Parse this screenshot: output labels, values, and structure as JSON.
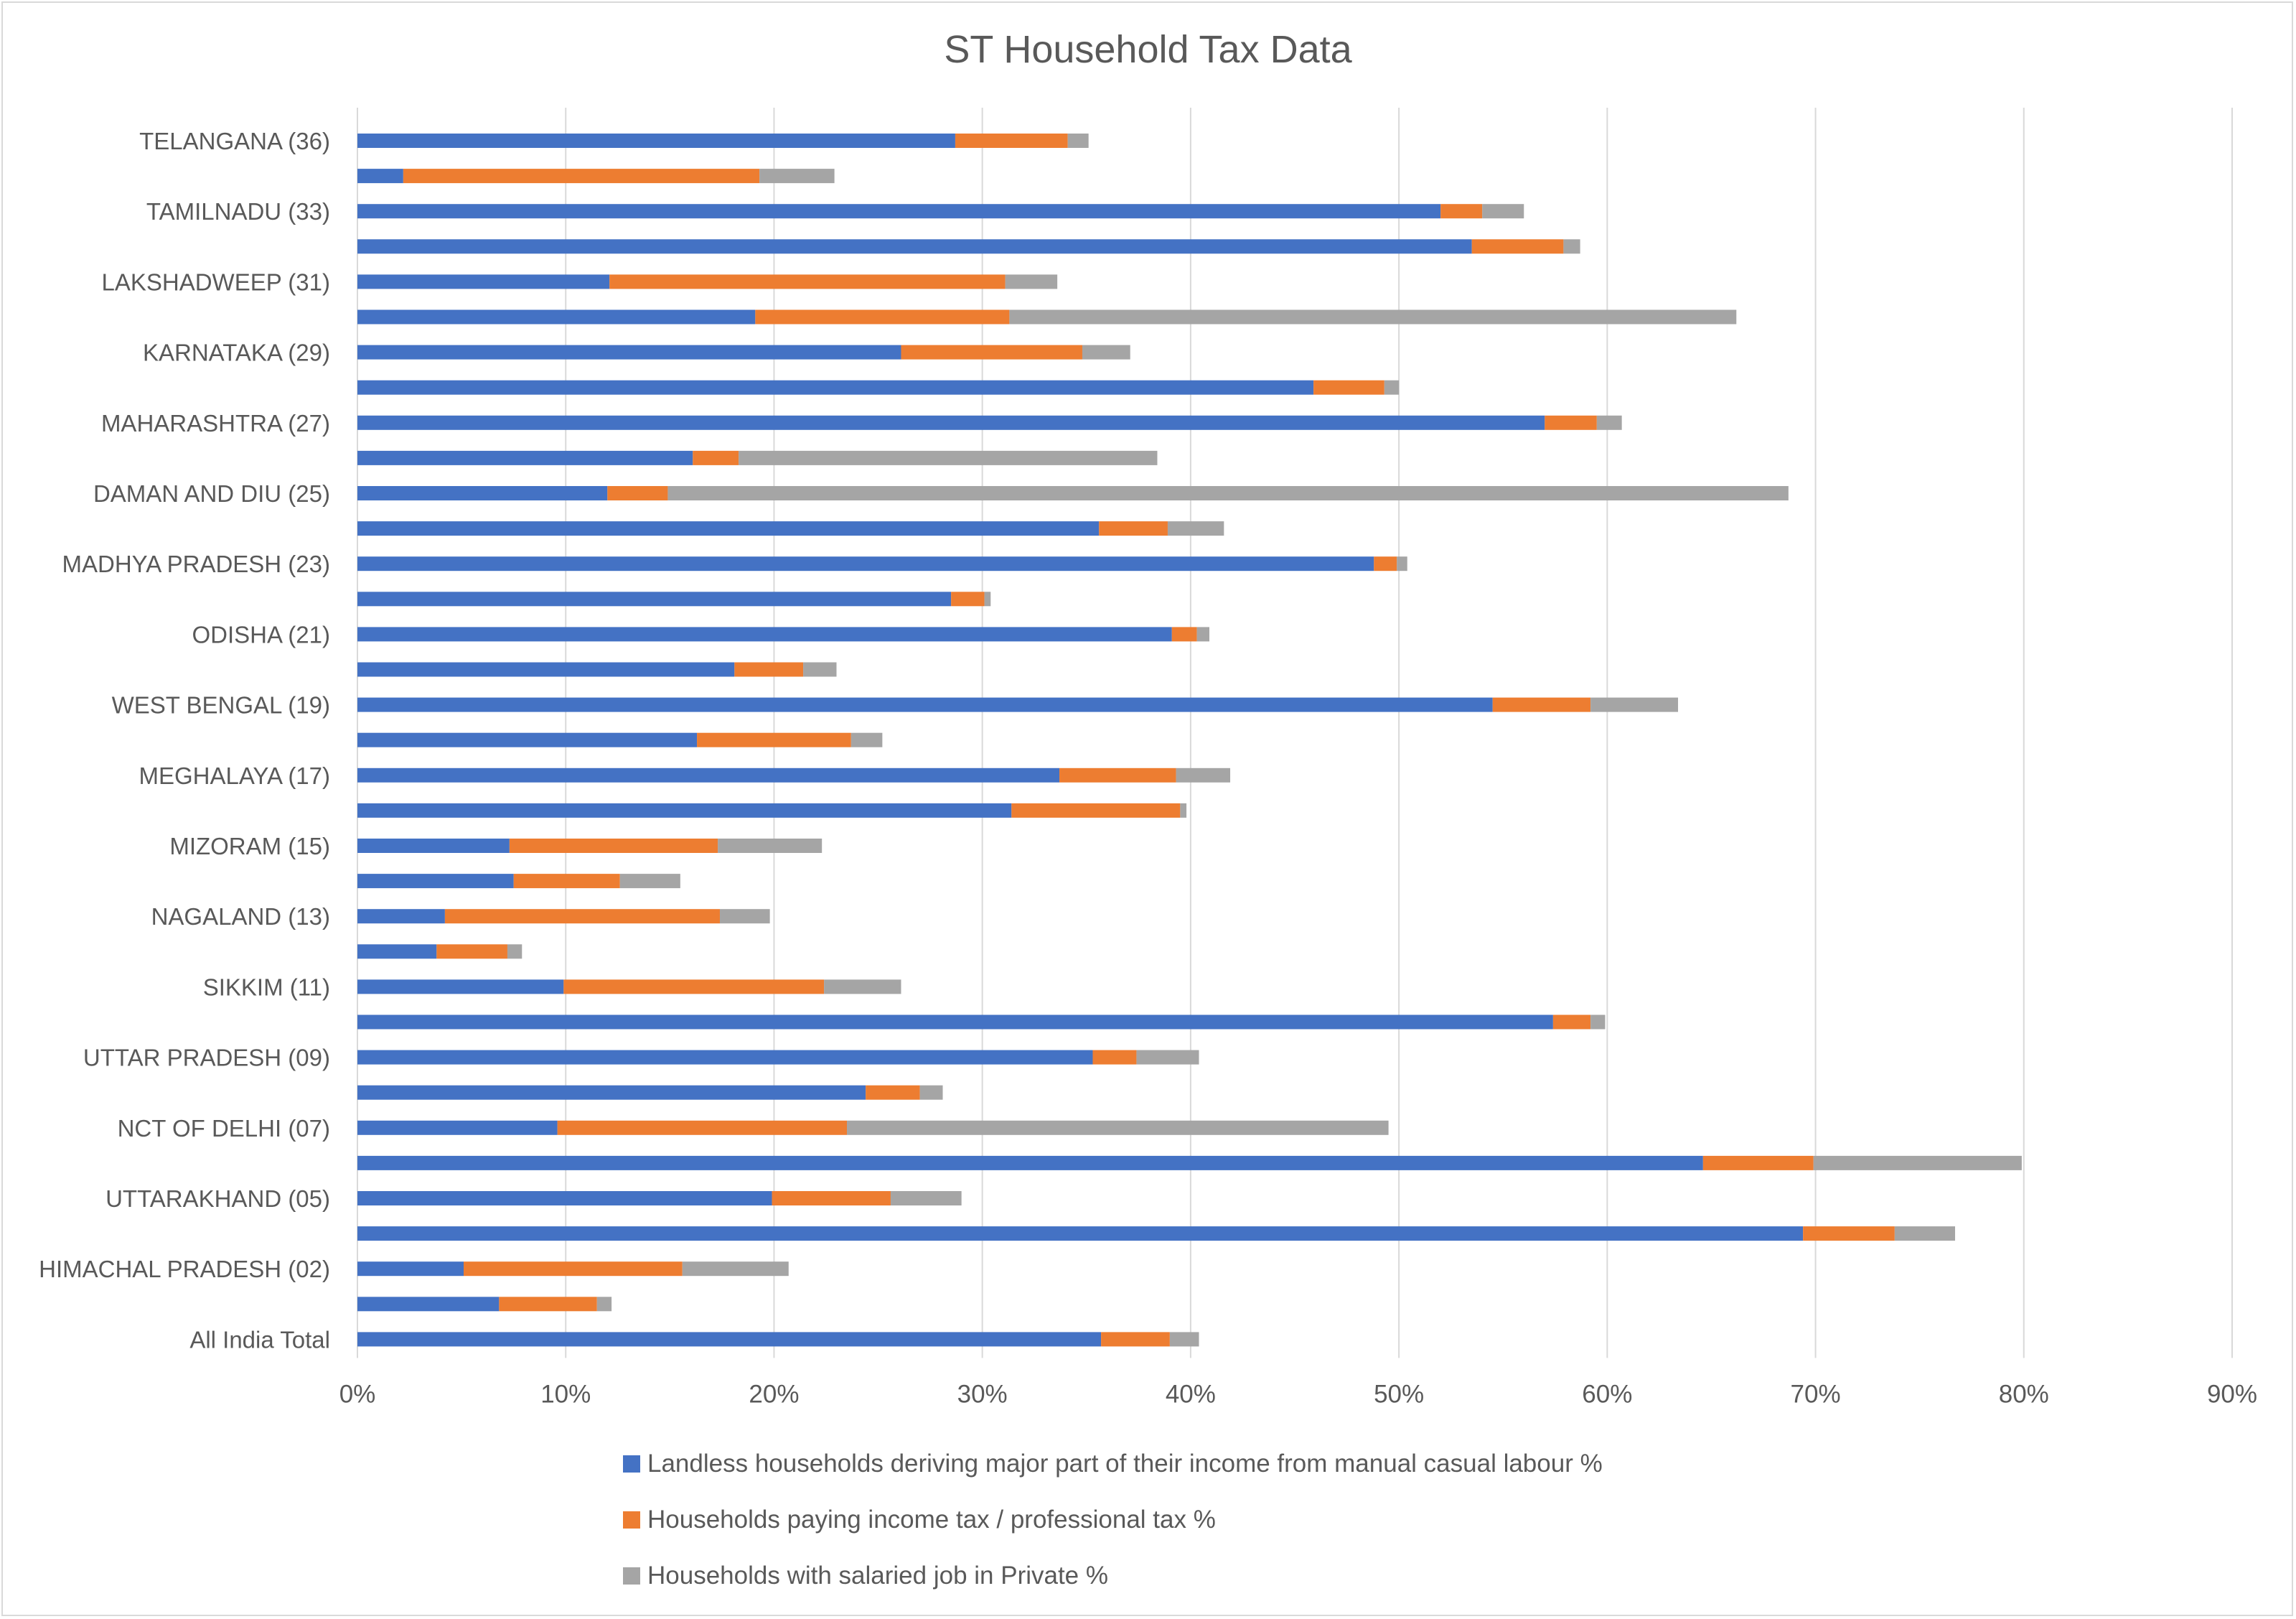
{
  "chart_data": {
    "type": "bar",
    "orientation": "horizontal",
    "stacked": true,
    "title": "ST Household Tax Data",
    "categories": [
      "TELANGANA (36)",
      "",
      "TAMILNADU (33)",
      "",
      "LAKSHADWEEP (31)",
      "",
      "KARNATAKA (29)",
      "",
      "MAHARASHTRA (27)",
      "",
      "DAMAN AND DIU (25)",
      "",
      "MADHYA PRADESH (23)",
      "",
      "ODISHA (21)",
      "",
      "WEST BENGAL (19)",
      "",
      "MEGHALAYA (17)",
      "",
      "MIZORAM (15)",
      "",
      "NAGALAND (13)",
      "",
      "SIKKIM (11)",
      "",
      "UTTAR PRADESH (09)",
      "",
      "NCT OF DELHI (07)",
      "",
      "UTTARAKHAND (05)",
      "",
      "HIMACHAL PRADESH (02)",
      "",
      "All India Total"
    ],
    "series": [
      {
        "name": "Landless households deriving major part of their income from manual casual labour %",
        "color": "#4472c4",
        "values": [
          28.7,
          2.2,
          52.0,
          53.5,
          12.1,
          19.1,
          26.1,
          45.9,
          57.0,
          16.1,
          12.0,
          35.6,
          48.8,
          28.5,
          39.1,
          18.1,
          54.5,
          16.3,
          33.7,
          31.4,
          7.3,
          7.5,
          4.2,
          3.8,
          9.9,
          57.4,
          35.3,
          24.4,
          9.6,
          64.6,
          19.9,
          69.4,
          5.1,
          6.8,
          35.7
        ]
      },
      {
        "name": "Households paying income tax / professional tax %",
        "color": "#ed7d31",
        "values": [
          5.4,
          17.1,
          2.0,
          4.4,
          19.0,
          12.2,
          8.7,
          3.4,
          2.5,
          2.2,
          2.9,
          3.3,
          1.1,
          1.6,
          1.2,
          3.3,
          4.7,
          7.4,
          5.6,
          8.1,
          10.0,
          5.1,
          13.2,
          3.4,
          12.5,
          1.8,
          2.1,
          2.6,
          13.9,
          5.3,
          5.7,
          4.4,
          10.5,
          4.7,
          3.3
        ]
      },
      {
        "name": "Households with salaried job in Private %",
        "color": "#a5a5a5",
        "values": [
          1.0,
          3.6,
          2.0,
          0.8,
          2.5,
          34.9,
          2.3,
          0.7,
          1.2,
          20.1,
          53.8,
          2.7,
          0.5,
          0.3,
          0.6,
          1.6,
          4.2,
          1.5,
          2.6,
          0.3,
          5.0,
          2.9,
          2.4,
          0.7,
          3.7,
          0.7,
          3.0,
          1.1,
          26.0,
          10.0,
          3.4,
          2.9,
          5.1,
          0.7,
          1.4
        ]
      }
    ],
    "xlim": [
      0,
      90
    ],
    "xticks": [
      "0%",
      "10%",
      "20%",
      "30%",
      "40%",
      "50%",
      "60%",
      "70%",
      "80%",
      "90%"
    ],
    "xlabel": "",
    "ylabel": "",
    "grid": "vertical",
    "legend_position": "bottom"
  }
}
